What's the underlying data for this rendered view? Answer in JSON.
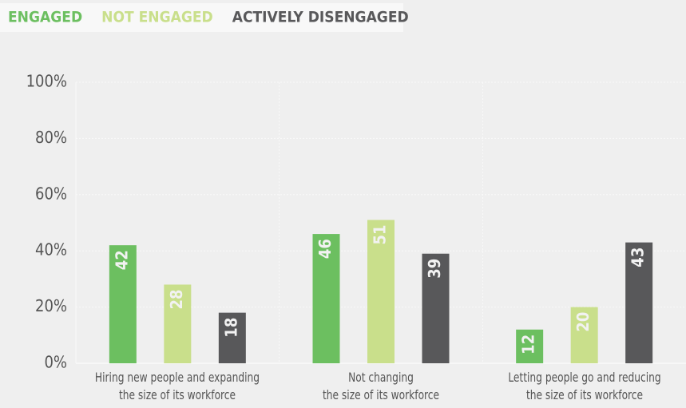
{
  "chart_data": {
    "type": "bar",
    "categories": [
      "Hiring new people and expanding\nthe size of its workforce",
      "Not changing\nthe size of its workforce",
      "Letting people go and reducing\nthe size of its workforce"
    ],
    "series": [
      {
        "name": "ENGAGED",
        "color": "#6cbf60",
        "values": [
          42,
          46,
          12
        ]
      },
      {
        "name": "NOT ENGAGED",
        "color": "#c9df8b",
        "values": [
          28,
          51,
          20
        ]
      },
      {
        "name": "ACTIVELY DISENGAGED",
        "color": "#58585a",
        "values": [
          18,
          39,
          43
        ]
      }
    ],
    "ylim": [
      0,
      100
    ],
    "yticks": [
      {
        "value": 0,
        "label": "0%"
      },
      {
        "value": 20,
        "label": "20%"
      },
      {
        "value": 40,
        "label": "40%"
      },
      {
        "value": 60,
        "label": "60%"
      },
      {
        "value": 80,
        "label": "80%"
      },
      {
        "value": 100,
        "label": "100%"
      }
    ],
    "legend": "top-left"
  }
}
